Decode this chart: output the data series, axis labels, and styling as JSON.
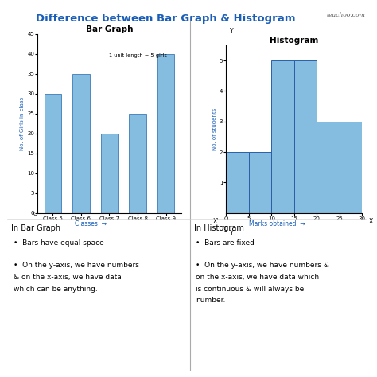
{
  "title": "Difference between Bar Graph & Histogram",
  "teachoo_text": "teachoo.com",
  "bg_color": "#ffffff",
  "bar_graph": {
    "title": "Bar Graph",
    "categories": [
      "Class 5",
      "Class 6",
      "Class 7",
      "Class 8",
      "Class 9"
    ],
    "values": [
      30,
      35,
      20,
      25,
      40
    ],
    "bar_color": "#85bde0",
    "bar_edge": "#3a7ab8",
    "ylabel": "No. of Girls in class",
    "xlabel": "Classes",
    "ylim": [
      0,
      45
    ],
    "yticks": [
      0,
      5,
      10,
      15,
      20,
      25,
      30,
      35,
      40,
      45
    ],
    "annotation": "1 unit length = 5 girls"
  },
  "histogram": {
    "title": "Histogram",
    "bin_edges": [
      0,
      5,
      10,
      15,
      20,
      25,
      30
    ],
    "values": [
      2,
      2,
      5,
      5,
      3,
      3
    ],
    "bar_color": "#85bde0",
    "bar_edge": "#2a5fa8",
    "ylabel": "No. of students",
    "xlabel": "Marks obtained",
    "ylim": [
      0,
      5
    ],
    "yticks": [
      1,
      2,
      3,
      4,
      5
    ],
    "xticks": [
      0,
      5,
      10,
      15,
      20,
      25,
      30
    ]
  },
  "divider_color": "#999999",
  "title_color": "#1a5eb8",
  "axis_label_color": "#1a5eb8",
  "bar_graph_text": {
    "heading": "In Bar Graph",
    "bullets": [
      "Bars have equal space",
      "On the y-axis, we have numbers\n& on the x-axis, we have data\nwhich can be anything."
    ]
  },
  "histogram_text": {
    "heading": "In Histogram",
    "bullets": [
      "Bars are fixed",
      "On the y-axis, we have numbers &\non the x-axis, we have data which\nis continuous & will always be\nnumber."
    ]
  }
}
